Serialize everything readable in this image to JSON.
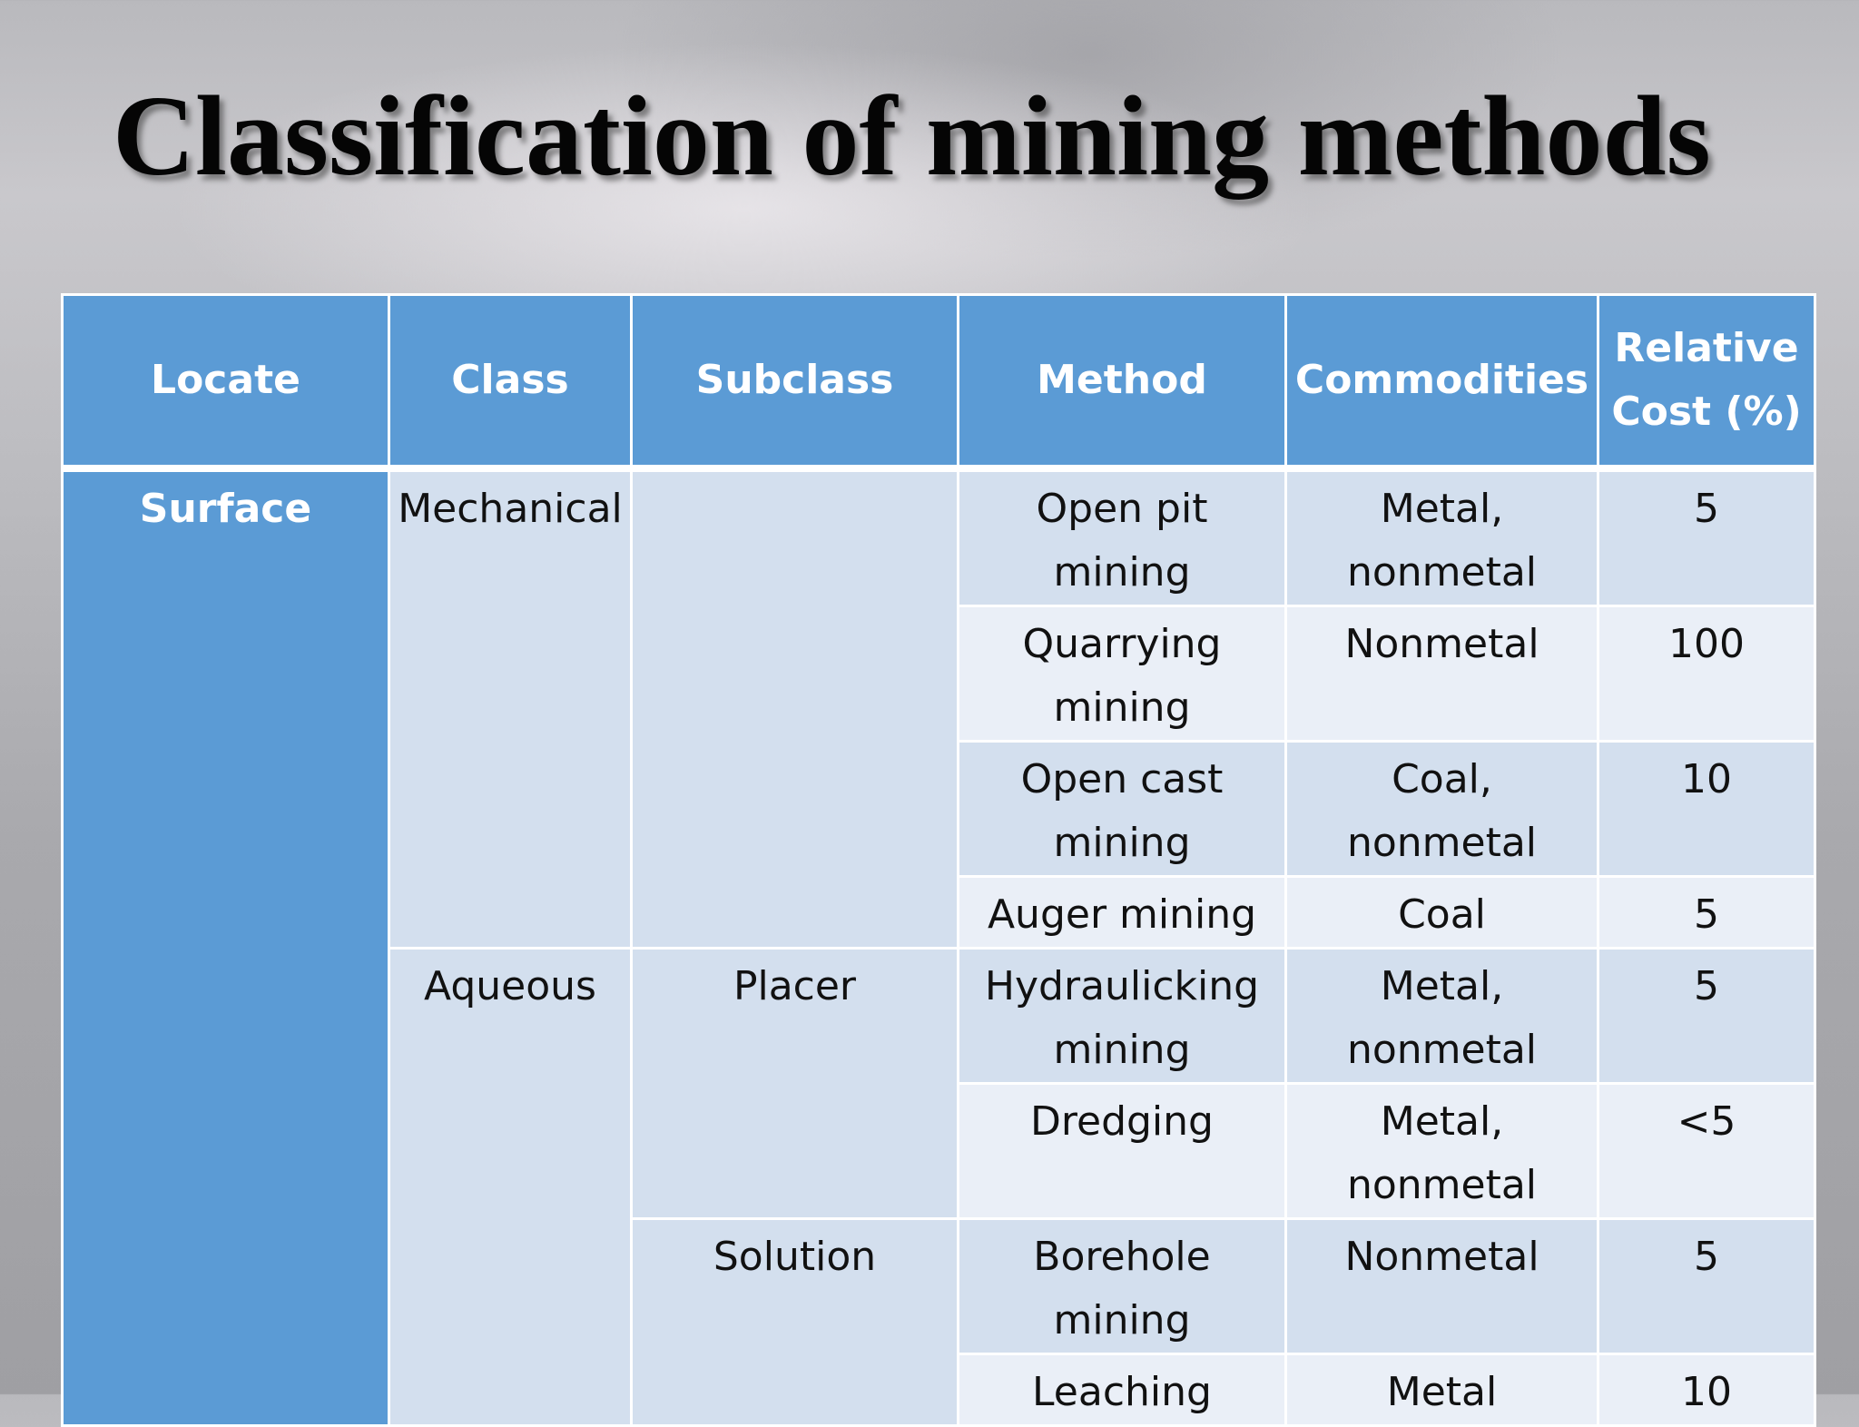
{
  "title": "Classification of mining methods",
  "table": {
    "headers": {
      "locate": "Locate",
      "class": "Class",
      "subclass": "Subclass",
      "method": "Method",
      "commodities": "Commodities",
      "relative_cost": "Relative Cost (%)"
    },
    "groups": {
      "locate_surface": "Surface",
      "class_mechanical": "Mechanical",
      "class_aqueous": "Aqueous",
      "subclass_mechanical": "",
      "subclass_placer": "Placer",
      "subclass_solution": "Solution"
    },
    "rows": [
      {
        "method": "Open pit mining",
        "commodities": "Metal, nonmetal",
        "cost": "5"
      },
      {
        "method": "Quarrying mining",
        "commodities": "Nonmetal",
        "cost": "100"
      },
      {
        "method": "Open cast mining",
        "commodities": "Coal, nonmetal",
        "cost": "10"
      },
      {
        "method": "Auger mining",
        "commodities": "Coal",
        "cost": "5"
      },
      {
        "method": "Hydraulicking mining",
        "commodities": "Metal, nonmetal",
        "cost": "5"
      },
      {
        "method": "Dredging",
        "commodities": "Metal, nonmetal",
        "cost": "<5"
      },
      {
        "method": "Borehole mining",
        "commodities": "Nonmetal",
        "cost": "5"
      },
      {
        "method": "Leaching",
        "commodities": "Metal",
        "cost": "10"
      }
    ]
  },
  "colors": {
    "header_bg": "#5b9bd5",
    "band_row_bg": "#d3dfee",
    "plain_row_bg": "#eaeff7",
    "border": "#ffffff"
  }
}
